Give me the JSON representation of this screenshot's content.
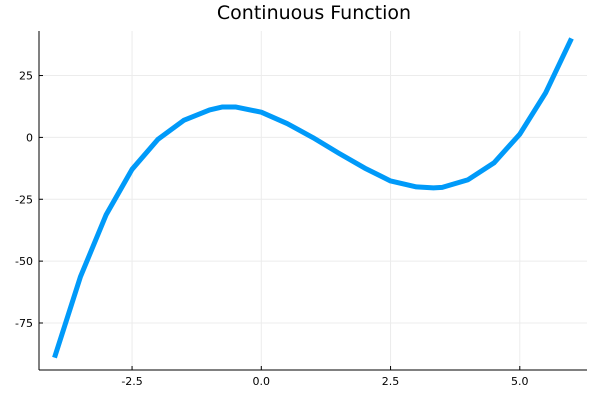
{
  "chart_data": {
    "type": "line",
    "title": "Continuous Function",
    "xlabel": "",
    "ylabel": "",
    "xlim": [
      -4.3,
      6.3
    ],
    "ylim": [
      -94,
      43
    ],
    "xticks": [
      -2.5,
      0.0,
      2.5,
      5.0
    ],
    "xtick_labels": [
      "-2.5",
      "0.0",
      "2.5",
      "5.0"
    ],
    "yticks": [
      25,
      0,
      -25,
      -50,
      -75
    ],
    "ytick_labels": [
      "25",
      "0",
      "-25",
      "-50",
      "-75"
    ],
    "grid": true,
    "legend": "none",
    "series": [
      {
        "color": "#009af9",
        "x": [
          -4.0,
          -3.5,
          -3.0,
          -2.5,
          -2.0,
          -1.5,
          -1.0,
          -0.75,
          -0.5,
          0.0,
          0.5,
          1.0,
          1.5,
          2.0,
          2.5,
          3.0,
          3.33,
          3.5,
          4.0,
          4.5,
          5.0,
          5.5,
          6.0
        ],
        "y": [
          -89.0,
          -56.4,
          -31.2,
          -12.9,
          -0.8,
          6.9,
          11.1,
          12.3,
          12.3,
          10.2,
          5.6,
          -0.1,
          -6.4,
          -12.4,
          -17.6,
          -20.0,
          -20.4,
          -20.2,
          -17.1,
          -10.3,
          1.3,
          18.0,
          40.0
        ]
      }
    ]
  }
}
